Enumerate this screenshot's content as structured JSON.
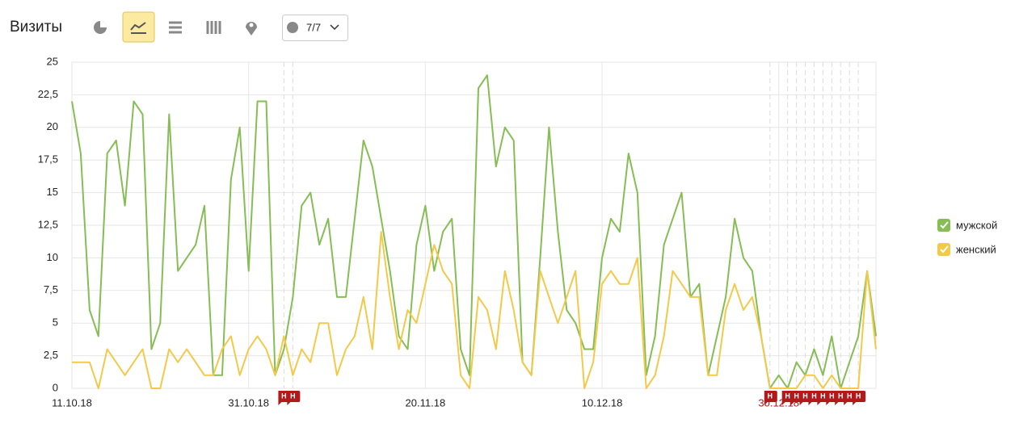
{
  "header": {
    "title": "Визиты",
    "counter": "7/7"
  },
  "chart_data": {
    "type": "line",
    "categories": [
      "11.10.18",
      null,
      null,
      null,
      null,
      null,
      null,
      null,
      null,
      null,
      null,
      null,
      null,
      null,
      null,
      null,
      null,
      null,
      null,
      null,
      "31.10.18",
      null,
      null,
      null,
      null,
      null,
      null,
      null,
      null,
      null,
      null,
      null,
      null,
      null,
      null,
      null,
      null,
      null,
      null,
      null,
      "20.11.18",
      null,
      null,
      null,
      null,
      null,
      null,
      null,
      null,
      null,
      null,
      null,
      null,
      null,
      null,
      null,
      null,
      null,
      null,
      null,
      "10.12.18",
      null,
      null,
      null,
      null,
      null,
      null,
      null,
      null,
      null,
      null,
      null,
      null,
      null,
      null,
      null,
      null,
      null,
      null,
      null,
      "30.12.18",
      null,
      null,
      null,
      null,
      null,
      null,
      null,
      null,
      null,
      null,
      null
    ],
    "series": [
      {
        "name": "мужской",
        "color": "#86bd55",
        "values": [
          22,
          18,
          6,
          4,
          18,
          19,
          14,
          22,
          21,
          3,
          5,
          21,
          9,
          10,
          11,
          14,
          1,
          1,
          16,
          20,
          9,
          22,
          22,
          1,
          3,
          7,
          14,
          15,
          11,
          13,
          7,
          7,
          13,
          19,
          17,
          13,
          9,
          4,
          3,
          11,
          14,
          9,
          12,
          13,
          3,
          1,
          23,
          24,
          17,
          20,
          19,
          2,
          1,
          10,
          20,
          12,
          6,
          5,
          3,
          3,
          10,
          13,
          12,
          18,
          15,
          1,
          4,
          11,
          13,
          15,
          7,
          8,
          1,
          4,
          7,
          13,
          10,
          9,
          4,
          0,
          1,
          0,
          2,
          1,
          3,
          1,
          4,
          0,
          2,
          4,
          9,
          4
        ]
      },
      {
        "name": "женский",
        "color": "#f3c94a",
        "values": [
          2,
          2,
          2,
          0,
          3,
          2,
          1,
          2,
          3,
          0,
          0,
          3,
          2,
          3,
          2,
          1,
          1,
          3,
          4,
          1,
          3,
          4,
          3,
          1,
          4,
          1,
          3,
          2,
          5,
          5,
          1,
          3,
          4,
          7,
          3,
          12,
          7,
          3,
          6,
          5,
          8,
          11,
          9,
          8,
          1,
          0,
          7,
          6,
          3,
          9,
          6,
          2,
          1,
          9,
          7,
          5,
          7,
          9,
          0,
          2,
          8,
          9,
          8,
          8,
          10,
          0,
          1,
          4,
          9,
          8,
          7,
          7,
          1,
          1,
          6,
          8,
          6,
          7,
          4,
          0,
          0,
          0,
          0,
          1,
          1,
          0,
          1,
          0,
          0,
          0,
          9,
          3
        ]
      }
    ],
    "ylim": [
      0,
      25
    ],
    "yticks": [
      0,
      {
        "value": 2.5,
        "label": "2,5"
      },
      5,
      {
        "value": 7.5,
        "label": "7,5"
      },
      10,
      {
        "value": 12.5,
        "label": "12,5"
      },
      15,
      {
        "value": 17.5,
        "label": "17,5"
      },
      20,
      {
        "value": 22.5,
        "label": "22,5"
      },
      25
    ],
    "grid": true,
    "legend": "right",
    "holidays": [
      {
        "index": 24,
        "label": "Н"
      },
      {
        "index": 25,
        "label": "Н"
      },
      {
        "index": 79,
        "label": "Н"
      },
      {
        "index": 81,
        "label": "Н"
      },
      {
        "index": 82,
        "label": "Н"
      },
      {
        "index": 83,
        "label": "Н"
      },
      {
        "index": 84,
        "label": "Н"
      },
      {
        "index": 85,
        "label": "Н"
      },
      {
        "index": 86,
        "label": "Н"
      },
      {
        "index": 87,
        "label": "Н"
      },
      {
        "index": 88,
        "label": "Н"
      },
      {
        "index": 89,
        "label": "Н"
      }
    ]
  }
}
